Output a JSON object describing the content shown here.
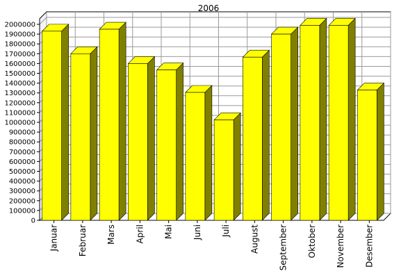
{
  "chart_data": {
    "type": "bar",
    "title": "2006",
    "xlabel": "",
    "ylabel": "",
    "categories": [
      "Januar",
      "Februar",
      "Mars",
      "April",
      "Mai",
      "Juni",
      "Juli",
      "August",
      "September",
      "Oktober",
      "November",
      "Desember"
    ],
    "values": [
      1930000,
      1700000,
      1950000,
      1600000,
      1535000,
      1305000,
      1025000,
      1665000,
      1900000,
      1990000,
      1990000,
      1330000
    ],
    "ylim": [
      0,
      2000000
    ],
    "yticks": [
      0,
      100000,
      200000,
      300000,
      400000,
      500000,
      600000,
      700000,
      800000,
      900000,
      1000000,
      1100000,
      1200000,
      1300000,
      1400000,
      1500000,
      1600000,
      1700000,
      1800000,
      1900000,
      2000000
    ],
    "grid": true,
    "legend": "none",
    "style": "3d",
    "colors": {
      "bar_front": "#ffff00",
      "bar_top": "#ffff00",
      "bar_side": "#808000",
      "grid": "#999999",
      "wall": "#ffffff",
      "axis": "#000000"
    }
  }
}
